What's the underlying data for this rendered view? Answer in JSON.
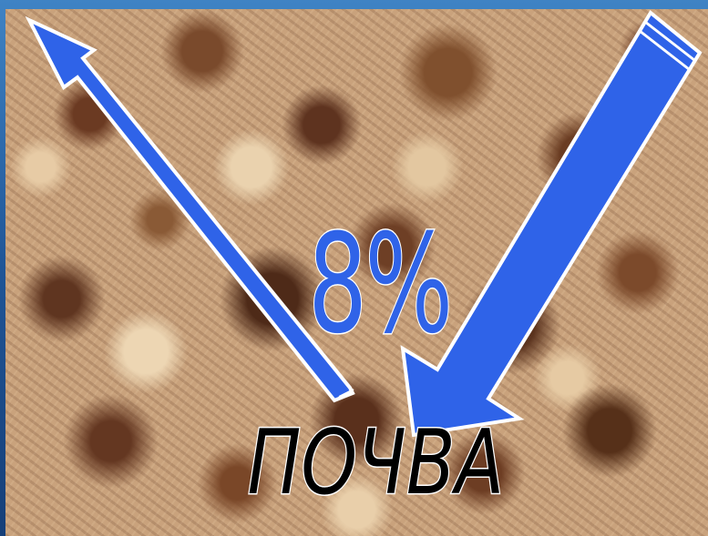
{
  "slide": {
    "percentage": "8%",
    "label": "ПОЧВА"
  },
  "colors": {
    "arrow_fill": "#2f63e8",
    "arrow_outline": "#ffffff",
    "percent_fill": "#2f63e8",
    "label_fill": "#000000",
    "label_outline": "#ffffff"
  },
  "icons": {
    "up_arrow": "arrow-up-left-icon",
    "down_arrow": "arrow-down-left-icon"
  }
}
